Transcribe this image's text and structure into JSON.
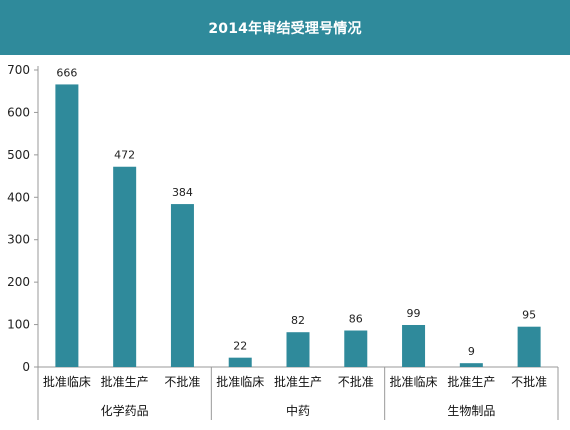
{
  "chart_data": {
    "type": "bar",
    "title": "2014年审结受理号情况",
    "groups": [
      {
        "name": "化学药品",
        "categories": [
          "批准临床",
          "批准生产",
          "不批准"
        ],
        "values": [
          666,
          472,
          384
        ]
      },
      {
        "name": "中药",
        "categories": [
          "批准临床",
          "批准生产",
          "不批准"
        ],
        "values": [
          22,
          82,
          86
        ]
      },
      {
        "name": "生物制品",
        "categories": [
          "批准临床",
          "批准生产",
          "不批准"
        ],
        "values": [
          99,
          9,
          95
        ]
      }
    ],
    "ylim": [
      0,
      700
    ],
    "yticks": [
      0,
      100,
      200,
      300,
      400,
      500,
      600,
      700
    ],
    "bar_color": "#2f8a9b",
    "header_color": "#2f8a9b",
    "grid": false,
    "legend": "none"
  }
}
